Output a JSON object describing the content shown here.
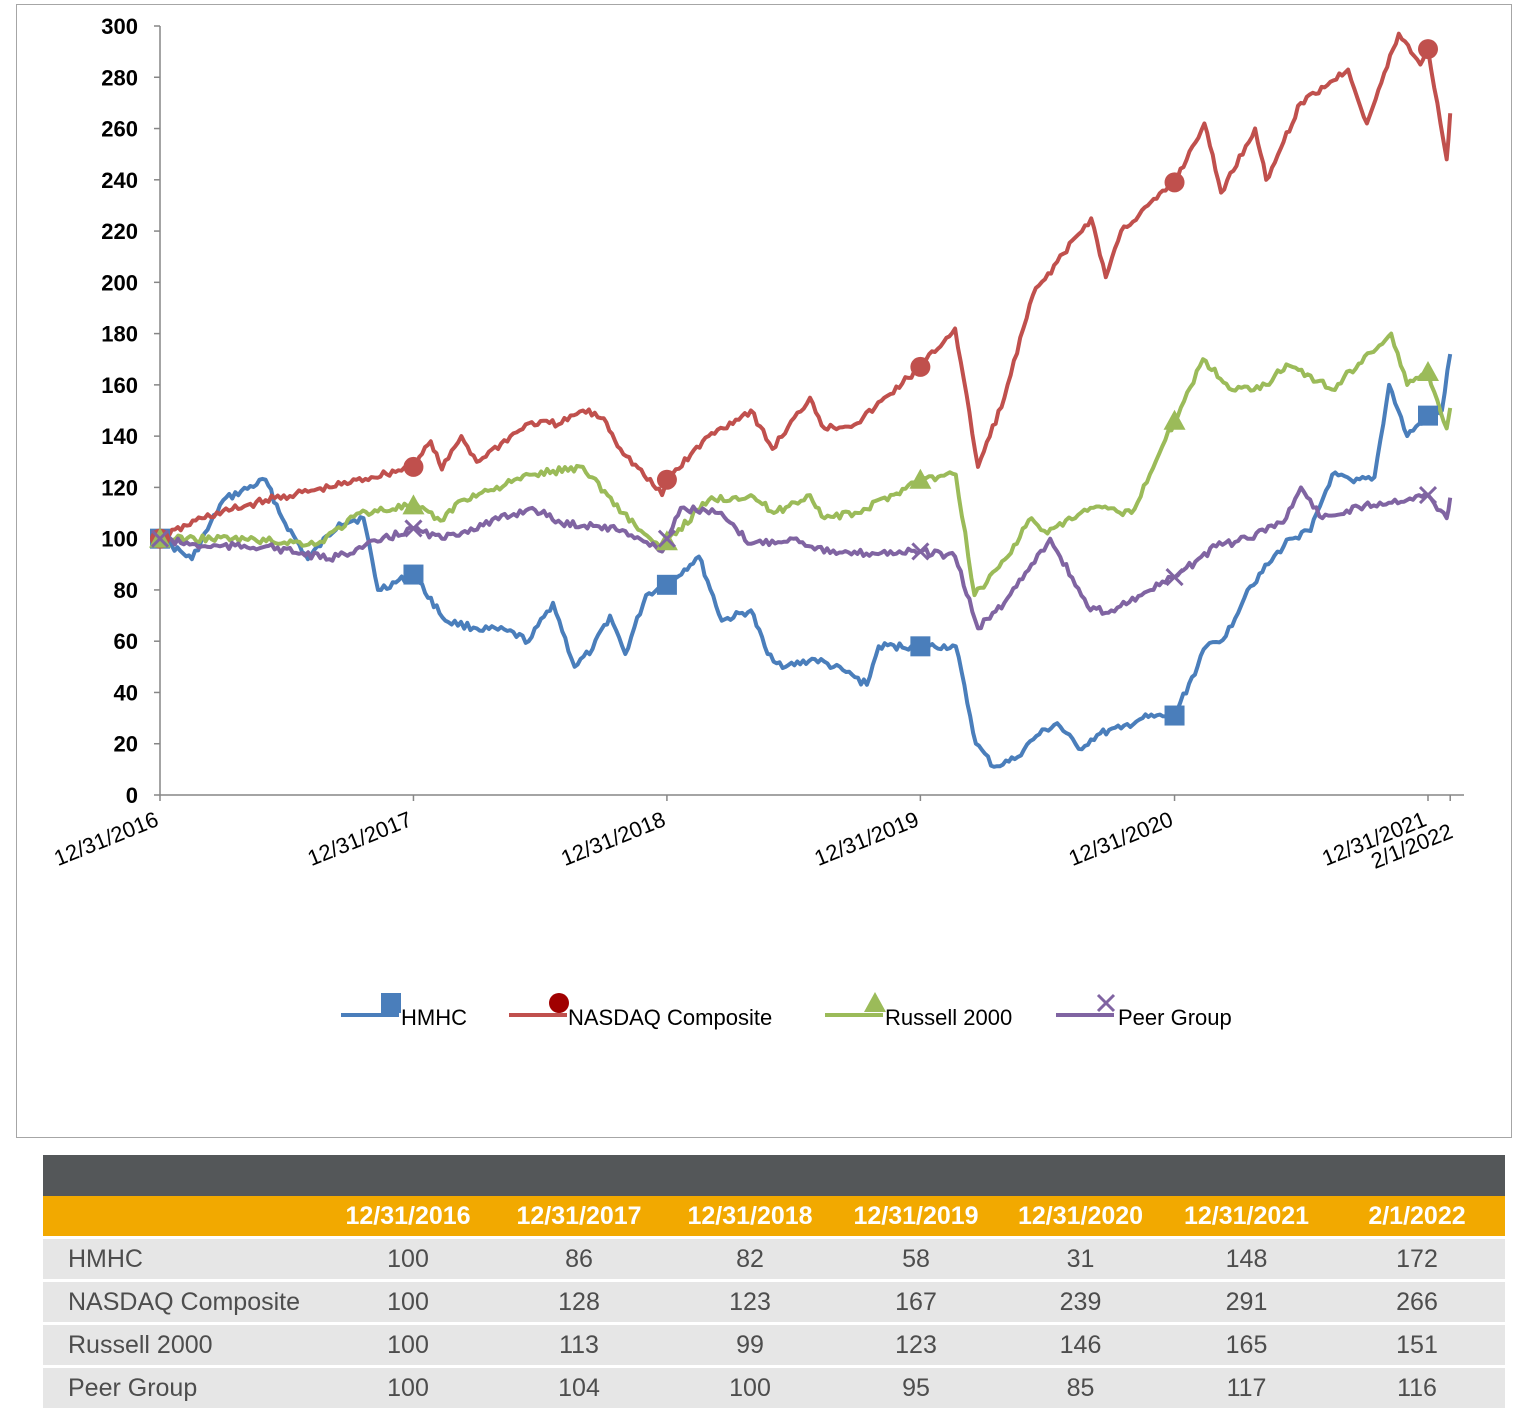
{
  "chart_data": {
    "type": "line",
    "ylim": [
      0,
      300
    ],
    "yticks": [
      0,
      20,
      40,
      60,
      80,
      100,
      120,
      140,
      160,
      180,
      200,
      220,
      240,
      260,
      280,
      300
    ],
    "x_tick_labels": [
      "12/31/2016",
      "12/31/2017",
      "12/31/2018",
      "12/31/2019",
      "12/31/2020",
      "12/31/2021",
      "2/1/2022"
    ],
    "x_tick_dates": [
      "2016-12-31",
      "2017-12-31",
      "2018-12-31",
      "2019-12-31",
      "2020-12-31",
      "2021-12-31",
      "2022-02-01"
    ],
    "legend_position": "bottom-center",
    "grid": false,
    "series": [
      {
        "name": "HMHC",
        "color": "#4a7ebb",
        "marker": "square",
        "points": [
          [
            "2016-12-31",
            100
          ],
          [
            "2017-02-15",
            92
          ],
          [
            "2017-04-01",
            115
          ],
          [
            "2017-06-01",
            123
          ],
          [
            "2017-06-25",
            108
          ],
          [
            "2017-08-01",
            92
          ],
          [
            "2017-09-15",
            106
          ],
          [
            "2017-10-20",
            108
          ],
          [
            "2017-11-10",
            80
          ],
          [
            "2017-12-31",
            86
          ],
          [
            "2018-02-15",
            68
          ],
          [
            "2018-04-01",
            65
          ],
          [
            "2018-05-15",
            64
          ],
          [
            "2018-06-15",
            60
          ],
          [
            "2018-07-20",
            75
          ],
          [
            "2018-08-20",
            50
          ],
          [
            "2018-09-15",
            57
          ],
          [
            "2018-10-10",
            70
          ],
          [
            "2018-11-01",
            55
          ],
          [
            "2018-12-01",
            78
          ],
          [
            "2018-12-31",
            82
          ],
          [
            "2019-02-15",
            93
          ],
          [
            "2019-03-20",
            68
          ],
          [
            "2019-05-01",
            72
          ],
          [
            "2019-05-25",
            55
          ],
          [
            "2019-06-20",
            50
          ],
          [
            "2019-08-01",
            53
          ],
          [
            "2019-09-15",
            48
          ],
          [
            "2019-10-15",
            43
          ],
          [
            "2019-11-01",
            58
          ],
          [
            "2019-12-31",
            58
          ],
          [
            "2020-02-20",
            58
          ],
          [
            "2020-03-20",
            20
          ],
          [
            "2020-04-15",
            11
          ],
          [
            "2020-05-15",
            14
          ],
          [
            "2020-06-15",
            23
          ],
          [
            "2020-07-15",
            28
          ],
          [
            "2020-08-15",
            18
          ],
          [
            "2020-09-15",
            24
          ],
          [
            "2020-10-15",
            26
          ],
          [
            "2020-11-15",
            30
          ],
          [
            "2020-12-31",
            31
          ],
          [
            "2021-02-15",
            58
          ],
          [
            "2021-03-15",
            62
          ],
          [
            "2021-04-15",
            80
          ],
          [
            "2021-05-15",
            90
          ],
          [
            "2021-06-15",
            100
          ],
          [
            "2021-07-15",
            103
          ],
          [
            "2021-08-15",
            125
          ],
          [
            "2021-09-15",
            122
          ],
          [
            "2021-10-15",
            124
          ],
          [
            "2021-11-05",
            160
          ],
          [
            "2021-12-01",
            140
          ],
          [
            "2021-12-31",
            148
          ],
          [
            "2022-01-20",
            150
          ],
          [
            "2022-02-01",
            172
          ]
        ]
      },
      {
        "name": "NASDAQ Composite",
        "color": "#c0504d",
        "marker": "circle",
        "points": [
          [
            "2016-12-31",
            100
          ],
          [
            "2017-03-01",
            108
          ],
          [
            "2017-06-01",
            115
          ],
          [
            "2017-09-01",
            120
          ],
          [
            "2017-12-31",
            128
          ],
          [
            "2018-01-25",
            138
          ],
          [
            "2018-02-10",
            127
          ],
          [
            "2018-03-10",
            140
          ],
          [
            "2018-04-01",
            130
          ],
          [
            "2018-06-15",
            145
          ],
          [
            "2018-08-01",
            145
          ],
          [
            "2018-09-01",
            150
          ],
          [
            "2018-10-01",
            147
          ],
          [
            "2018-10-25",
            135
          ],
          [
            "2018-12-24",
            117
          ],
          [
            "2018-12-31",
            123
          ],
          [
            "2019-03-01",
            140
          ],
          [
            "2019-05-01",
            150
          ],
          [
            "2019-06-01",
            135
          ],
          [
            "2019-07-25",
            155
          ],
          [
            "2019-08-15",
            143
          ],
          [
            "2019-10-01",
            145
          ],
          [
            "2019-12-31",
            167
          ],
          [
            "2020-02-19",
            182
          ],
          [
            "2020-03-23",
            128
          ],
          [
            "2020-04-30",
            155
          ],
          [
            "2020-06-10",
            195
          ],
          [
            "2020-07-15",
            208
          ],
          [
            "2020-09-02",
            225
          ],
          [
            "2020-09-23",
            202
          ],
          [
            "2020-10-15",
            220
          ],
          [
            "2020-12-31",
            239
          ],
          [
            "2021-02-12",
            262
          ],
          [
            "2021-03-08",
            235
          ],
          [
            "2021-04-26",
            260
          ],
          [
            "2021-05-12",
            240
          ],
          [
            "2021-07-01",
            270
          ],
          [
            "2021-09-07",
            283
          ],
          [
            "2021-10-04",
            262
          ],
          [
            "2021-11-19",
            297
          ],
          [
            "2021-12-20",
            285
          ],
          [
            "2021-12-31",
            291
          ],
          [
            "2022-01-27",
            248
          ],
          [
            "2022-02-01",
            266
          ]
        ]
      },
      {
        "name": "Russell 2000",
        "color": "#9bbb59",
        "marker": "triangle",
        "points": [
          [
            "2016-12-31",
            100
          ],
          [
            "2017-04-15",
            100
          ],
          [
            "2017-08-15",
            98
          ],
          [
            "2017-10-15",
            110
          ],
          [
            "2017-12-31",
            113
          ],
          [
            "2018-02-08",
            107
          ],
          [
            "2018-03-10",
            115
          ],
          [
            "2018-06-20",
            125
          ],
          [
            "2018-09-01",
            128
          ],
          [
            "2018-10-29",
            110
          ],
          [
            "2018-12-24",
            95
          ],
          [
            "2018-12-31",
            99
          ],
          [
            "2019-03-01",
            115
          ],
          [
            "2019-05-01",
            117
          ],
          [
            "2019-06-03",
            110
          ],
          [
            "2019-07-25",
            117
          ],
          [
            "2019-08-15",
            108
          ],
          [
            "2019-10-02",
            110
          ],
          [
            "2019-12-31",
            123
          ],
          [
            "2020-02-20",
            125
          ],
          [
            "2020-03-18",
            78
          ],
          [
            "2020-05-01",
            92
          ],
          [
            "2020-06-08",
            108
          ],
          [
            "2020-07-01",
            102
          ],
          [
            "2020-09-01",
            112
          ],
          [
            "2020-10-30",
            110
          ],
          [
            "2020-12-31",
            146
          ],
          [
            "2021-02-10",
            170
          ],
          [
            "2021-03-24",
            158
          ],
          [
            "2021-05-12",
            160
          ],
          [
            "2021-06-10",
            168
          ],
          [
            "2021-08-19",
            158
          ],
          [
            "2021-09-01",
            163
          ],
          [
            "2021-11-08",
            180
          ],
          [
            "2021-12-01",
            160
          ],
          [
            "2021-12-31",
            165
          ],
          [
            "2022-01-27",
            143
          ],
          [
            "2022-02-01",
            151
          ]
        ]
      },
      {
        "name": "Peer Group",
        "color": "#8064a2",
        "marker": "x",
        "points": [
          [
            "2016-12-31",
            100
          ],
          [
            "2017-03-01",
            97
          ],
          [
            "2017-06-01",
            97
          ],
          [
            "2017-09-01",
            92
          ],
          [
            "2017-12-31",
            104
          ],
          [
            "2018-02-10",
            100
          ],
          [
            "2018-03-15",
            103
          ],
          [
            "2018-06-20",
            112
          ],
          [
            "2018-08-01",
            106
          ],
          [
            "2018-09-20",
            105
          ],
          [
            "2018-11-01",
            103
          ],
          [
            "2018-12-24",
            95
          ],
          [
            "2018-12-31",
            100
          ],
          [
            "2019-01-20",
            112
          ],
          [
            "2019-03-15",
            110
          ],
          [
            "2019-05-01",
            98
          ],
          [
            "2019-07-01",
            100
          ],
          [
            "2019-09-01",
            94
          ],
          [
            "2019-12-31",
            95
          ],
          [
            "2020-02-19",
            93
          ],
          [
            "2020-03-23",
            65
          ],
          [
            "2020-04-30",
            75
          ],
          [
            "2020-06-08",
            90
          ],
          [
            "2020-07-05",
            100
          ],
          [
            "2020-07-15",
            95
          ],
          [
            "2020-09-01",
            72
          ],
          [
            "2020-10-01",
            72
          ],
          [
            "2020-12-31",
            85
          ],
          [
            "2021-03-01",
            97
          ],
          [
            "2021-04-15",
            100
          ],
          [
            "2021-06-10",
            108
          ],
          [
            "2021-07-01",
            120
          ],
          [
            "2021-08-01",
            108
          ],
          [
            "2021-10-01",
            113
          ],
          [
            "2021-12-31",
            117
          ],
          [
            "2022-01-27",
            108
          ],
          [
            "2022-02-01",
            116
          ]
        ]
      }
    ]
  },
  "table": {
    "headers": [
      "",
      "12/31/2016",
      "12/31/2017",
      "12/31/2018",
      "12/31/2019",
      "12/31/2020",
      "12/31/2021",
      "2/1/2022"
    ],
    "rows": [
      {
        "name": "HMHC",
        "values": [
          "100",
          "86",
          "82",
          "58",
          "31",
          "148",
          "172"
        ]
      },
      {
        "name": "NASDAQ Composite",
        "values": [
          "100",
          "128",
          "123",
          "167",
          "239",
          "291",
          "266"
        ]
      },
      {
        "name": "Russell 2000",
        "values": [
          "100",
          "113",
          "99",
          "123",
          "146",
          "165",
          "151"
        ]
      },
      {
        "name": "Peer Group",
        "values": [
          "100",
          "104",
          "100",
          "95",
          "85",
          "117",
          "116"
        ]
      }
    ]
  }
}
